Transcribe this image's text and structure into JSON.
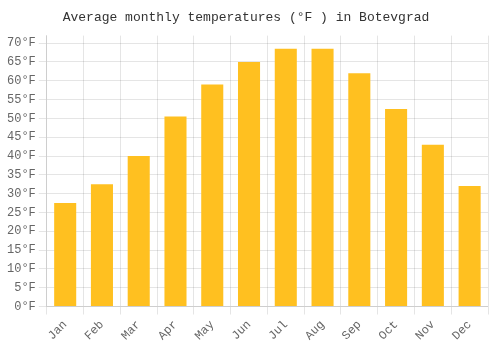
{
  "chart_data": {
    "type": "bar",
    "title": "Average monthly temperatures (°F ) in Botevgrad",
    "categories": [
      "Jan",
      "Feb",
      "Mar",
      "Apr",
      "May",
      "Jun",
      "Jul",
      "Aug",
      "Sep",
      "Oct",
      "Nov",
      "Dec"
    ],
    "values": [
      27.5,
      32.5,
      40.0,
      50.5,
      59.0,
      65.0,
      68.5,
      68.5,
      62.0,
      52.5,
      43.0,
      32.0
    ],
    "color": "#FFC020",
    "ylim": [
      0,
      72
    ],
    "yticks": [
      {
        "value": 0,
        "label": "0°F"
      },
      {
        "value": 5,
        "label": "5°F"
      },
      {
        "value": 10,
        "label": "10°F"
      },
      {
        "value": 15,
        "label": "15°F"
      },
      {
        "value": 20,
        "label": "20°F"
      },
      {
        "value": 25,
        "label": "25°F"
      },
      {
        "value": 30,
        "label": "30°F"
      },
      {
        "value": 35,
        "label": "35°F"
      },
      {
        "value": 40,
        "label": "40°F"
      },
      {
        "value": 45,
        "label": "45°F"
      },
      {
        "value": 50,
        "label": "50°F"
      },
      {
        "value": 55,
        "label": "55°F"
      },
      {
        "value": 60,
        "label": "60°F"
      },
      {
        "value": 65,
        "label": "65°F"
      },
      {
        "value": 70,
        "label": "70°F"
      }
    ],
    "grid": true
  }
}
